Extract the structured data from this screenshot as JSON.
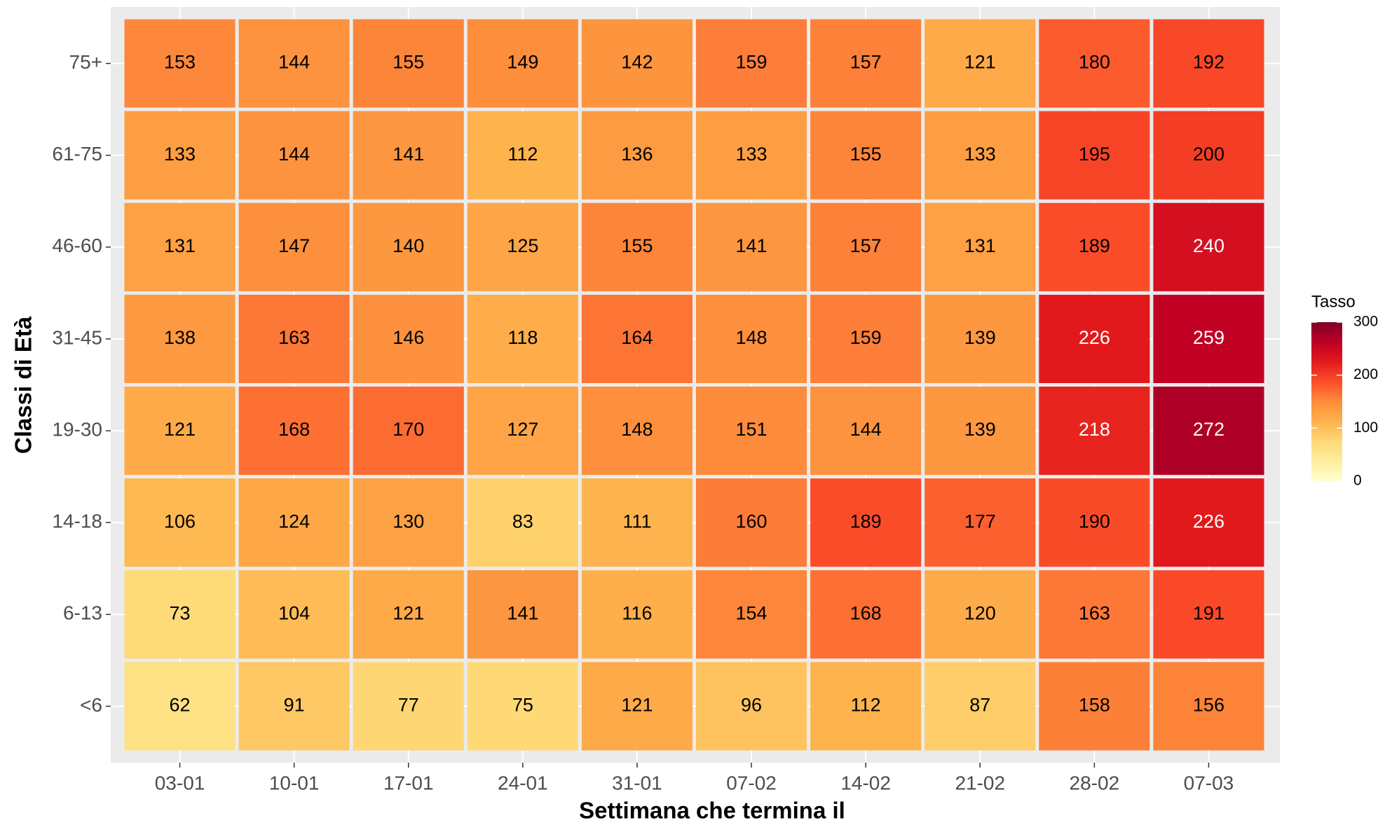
{
  "chart_data": {
    "type": "heatmap",
    "x_label": "Settimana che termina il",
    "y_label": "Classi di Età",
    "categories": [
      "03-01",
      "10-01",
      "17-01",
      "24-01",
      "31-01",
      "07-02",
      "14-02",
      "21-02",
      "28-02",
      "07-03"
    ],
    "rows": [
      "<6",
      "6-13",
      "14-18",
      "19-30",
      "31-45",
      "46-60",
      "61-75",
      "75+"
    ],
    "values": [
      [
        62,
        91,
        77,
        75,
        121,
        96,
        112,
        87,
        158,
        156
      ],
      [
        73,
        104,
        121,
        141,
        116,
        154,
        168,
        120,
        163,
        191
      ],
      [
        106,
        124,
        130,
        83,
        111,
        160,
        189,
        177,
        190,
        226
      ],
      [
        121,
        168,
        170,
        127,
        148,
        151,
        144,
        139,
        218,
        272
      ],
      [
        138,
        163,
        146,
        118,
        164,
        148,
        159,
        139,
        226,
        259
      ],
      [
        131,
        147,
        140,
        125,
        155,
        141,
        157,
        131,
        189,
        240
      ],
      [
        133,
        144,
        141,
        112,
        136,
        133,
        155,
        133,
        195,
        200
      ],
      [
        153,
        144,
        155,
        149,
        142,
        159,
        157,
        121,
        180,
        192
      ]
    ],
    "legend_title": "Tasso",
    "zlim": [
      0,
      300
    ],
    "zticks": [
      0,
      100,
      200,
      300
    ],
    "colors": [
      "#ffffcc",
      "#ffeda0",
      "#fed976",
      "#feb24c",
      "#fd8d3c",
      "#fc4e2a",
      "#e31a1c",
      "#bd0026",
      "#800026"
    ],
    "grid": true
  }
}
